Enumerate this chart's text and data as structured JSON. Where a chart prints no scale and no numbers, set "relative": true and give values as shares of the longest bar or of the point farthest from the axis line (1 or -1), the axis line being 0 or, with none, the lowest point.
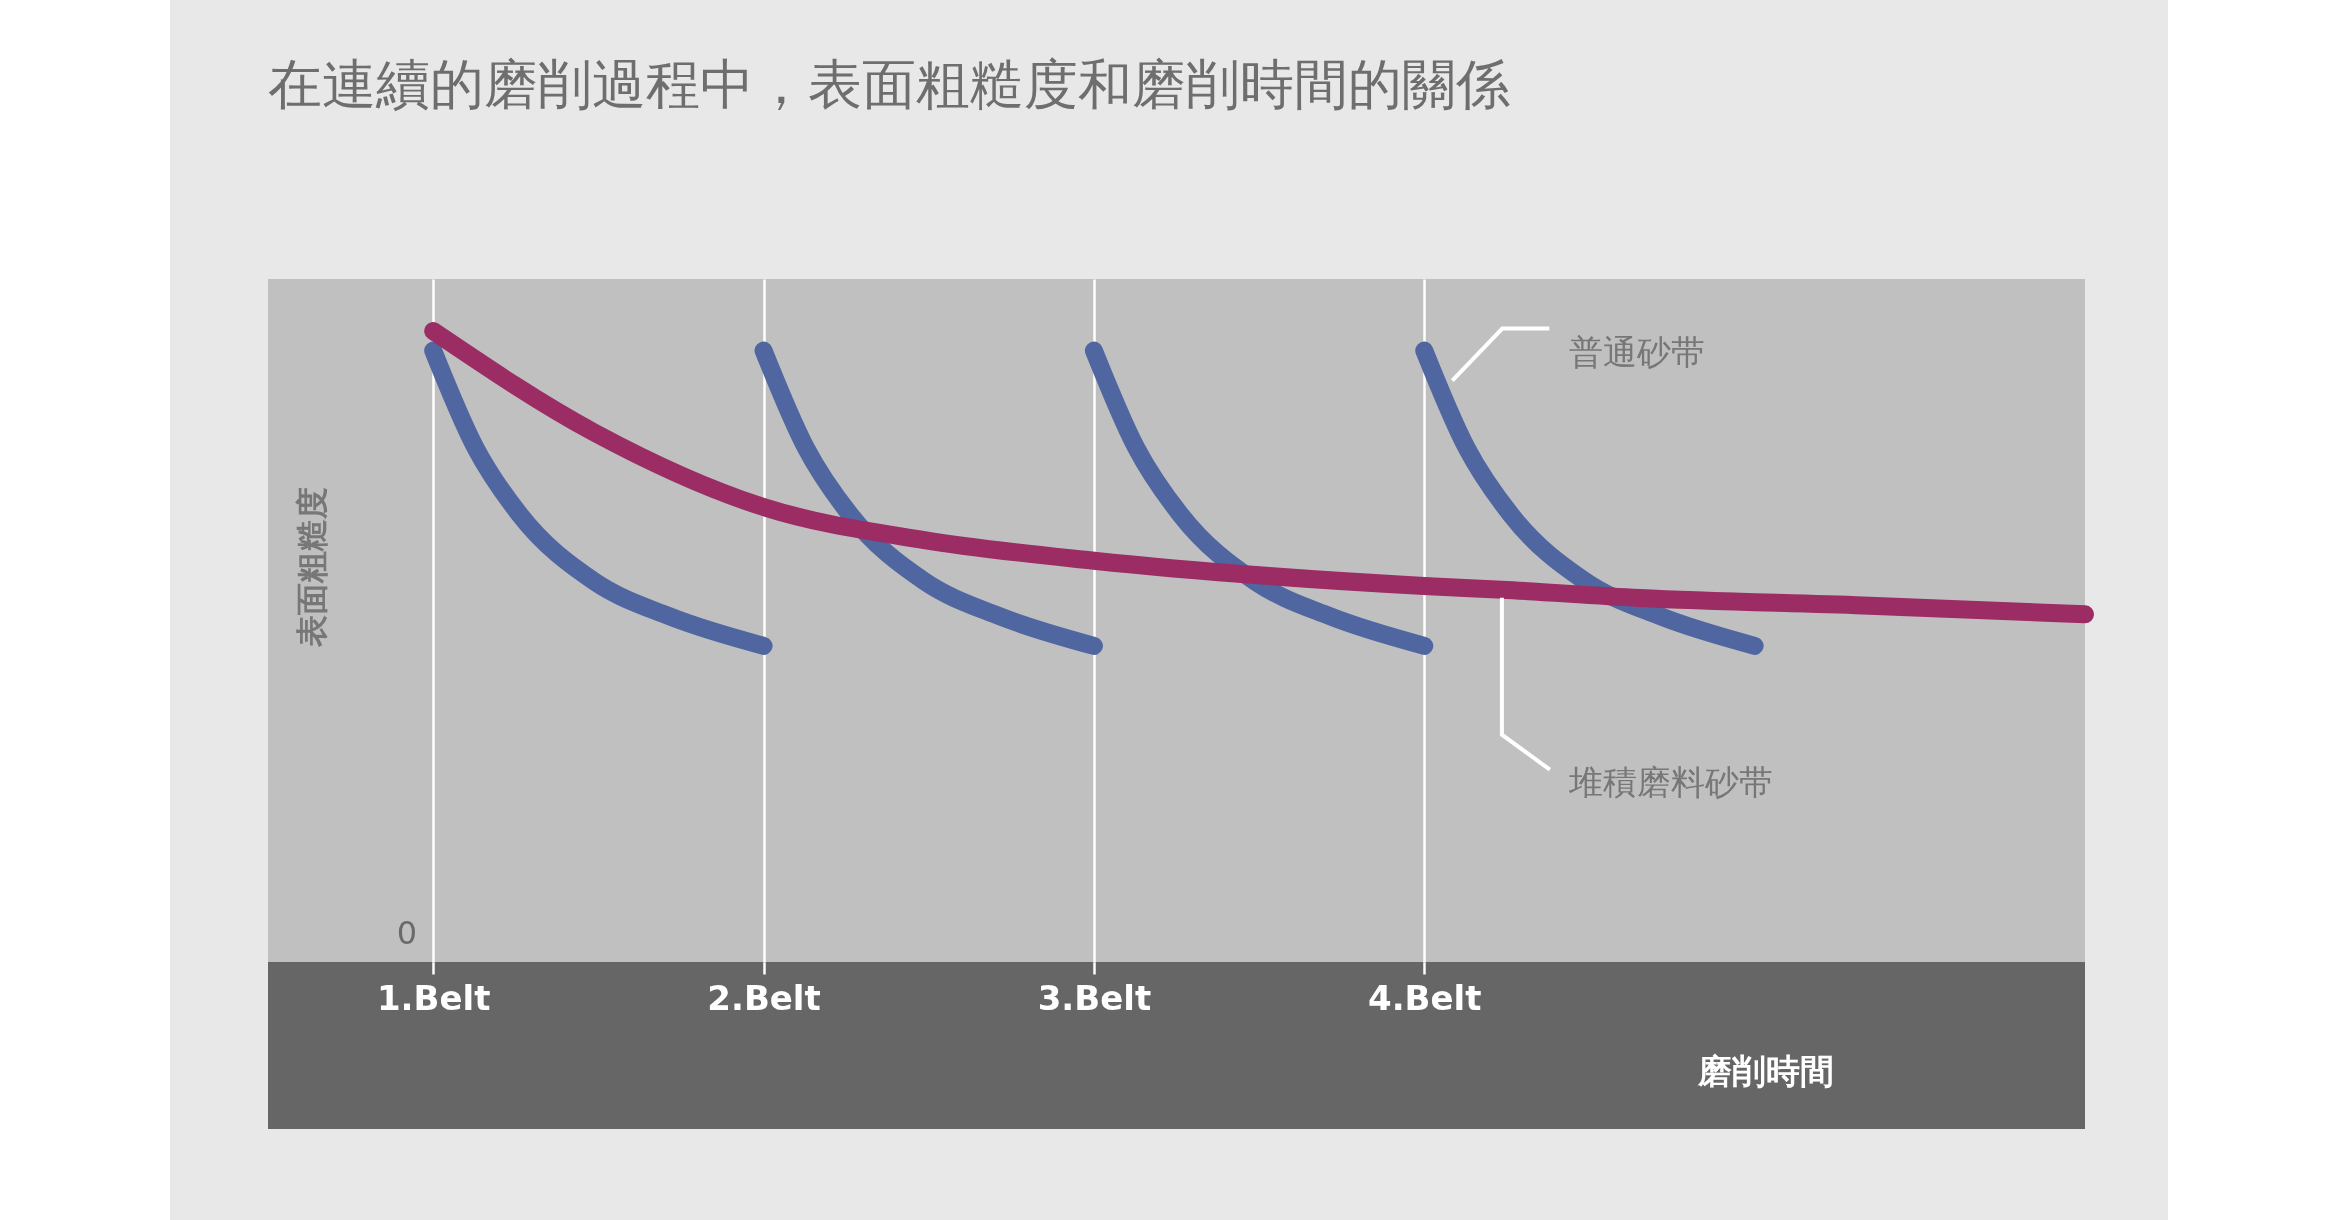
{
  "chart_data": {
    "type": "line",
    "title": "在連續的磨削過程中，表面粗糙度和磨削時間的關係",
    "xlabel": "磨削時間",
    "ylabel": "表面粗糙度",
    "relative": true,
    "xlim": [
      0.5,
      6
    ],
    "xticks": [
      {
        "value": 1,
        "label": "1.Belt"
      },
      {
        "value": 2,
        "label": "2.Belt"
      },
      {
        "value": 3,
        "label": "3.Belt"
      },
      {
        "value": 4,
        "label": "4.Belt"
      }
    ],
    "grid": "x",
    "legend": false,
    "annotations": [
      "0"
    ],
    "series": [
      {
        "name": "普通砂带",
        "color": "#4f66a0",
        "x": [
          1,
          1.127,
          1.262,
          1.488,
          1.714,
          2.0,
          null,
          2.0,
          2.127,
          2.262,
          2.488,
          2.714,
          3.0,
          null,
          3.0,
          3.127,
          3.262,
          3.488,
          3.714,
          4.0,
          null,
          4.0,
          4.127,
          4.262,
          4.488,
          4.714,
          5.0
        ],
        "values": [
          0.969,
          0.816,
          0.709,
          0.603,
          0.548,
          0.501,
          null,
          0.969,
          0.816,
          0.709,
          0.603,
          0.548,
          0.501,
          null,
          0.969,
          0.816,
          0.709,
          0.603,
          0.548,
          0.501,
          null,
          0.969,
          0.816,
          0.709,
          0.603,
          0.548,
          0.501
        ]
      },
      {
        "name": "堆積磨料砂带",
        "color": "#9b2c64",
        "x": [
          1,
          1.488,
          2,
          2.482,
          3,
          3.521,
          4,
          4.235,
          4.651,
          5.329,
          6.0
        ],
        "values": [
          1.0,
          0.839,
          0.721,
          0.669,
          0.636,
          0.612,
          0.596,
          0.59,
          0.577,
          0.565,
          0.551
        ]
      }
    ]
  }
}
